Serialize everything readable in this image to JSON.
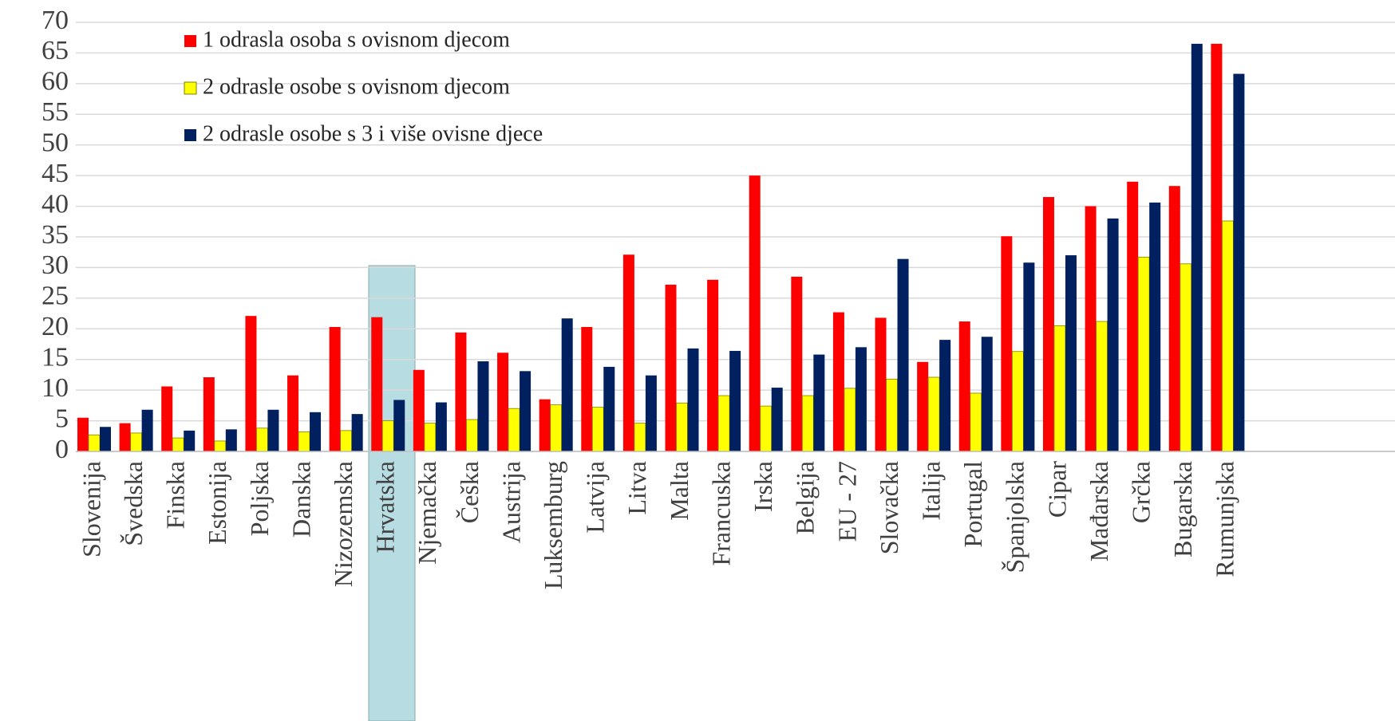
{
  "chart_data": {
    "type": "bar",
    "categories": [
      "Slovenija",
      "Švedska",
      "Finska",
      "Estonija",
      "Poljska",
      "Danska",
      "Nizozemska",
      "Hrvatska",
      "Njemačka",
      "Češka",
      "Austrija",
      "Luksemburg",
      "Latvija",
      "Litva",
      "Malta",
      "Francuska",
      "Irska",
      "Belgija",
      "EU - 27",
      "Slovačka",
      "Italija",
      "Portugal",
      "Španjolska",
      "Cipar",
      "Mađarska",
      "Grčka",
      "Bugarska",
      "Rumunjska"
    ],
    "series": [
      {
        "name": "1 odrasla osoba s ovisnom djecom",
        "color": "#ff0000",
        "values": [
          5.5,
          4.6,
          10.6,
          12.1,
          22.1,
          12.4,
          20.3,
          21.9,
          13.3,
          19.4,
          16.1,
          8.5,
          20.3,
          32.1,
          27.2,
          28,
          45,
          28.5,
          22.7,
          21.8,
          14.6,
          21.2,
          35.1,
          41.5,
          40,
          44,
          43.3,
          66.5
        ]
      },
      {
        "name": "2 odrasle osobe s ovisnom djecom",
        "color": "#ffff00",
        "values": [
          2.7,
          3,
          2.2,
          1.7,
          3.8,
          3.2,
          3.4,
          5,
          4.6,
          5.2,
          7,
          7.6,
          7.2,
          4.6,
          7.9,
          9.1,
          7.4,
          9.1,
          10.3,
          11.8,
          12.1,
          9.5,
          16.3,
          20.5,
          21.2,
          31.7,
          30.6,
          37.6
        ]
      },
      {
        "name": "2 odrasle osobe s 3 i više ovisne djece",
        "color": "#002060",
        "values": [
          4,
          6.8,
          3.4,
          3.6,
          6.8,
          6.4,
          6.1,
          8.4,
          8,
          14.7,
          13.1,
          21.7,
          13.8,
          12.4,
          16.8,
          16.4,
          10.4,
          15.8,
          17,
          31.4,
          18.2,
          18.7,
          30.8,
          32,
          38,
          40.6,
          66.5,
          61.6
        ]
      }
    ],
    "ylim": [
      0,
      70
    ],
    "yticks": [
      0,
      5,
      10,
      15,
      20,
      25,
      30,
      35,
      40,
      45,
      50,
      55,
      60,
      65,
      70
    ],
    "grid": true,
    "legend": "top-left"
  }
}
